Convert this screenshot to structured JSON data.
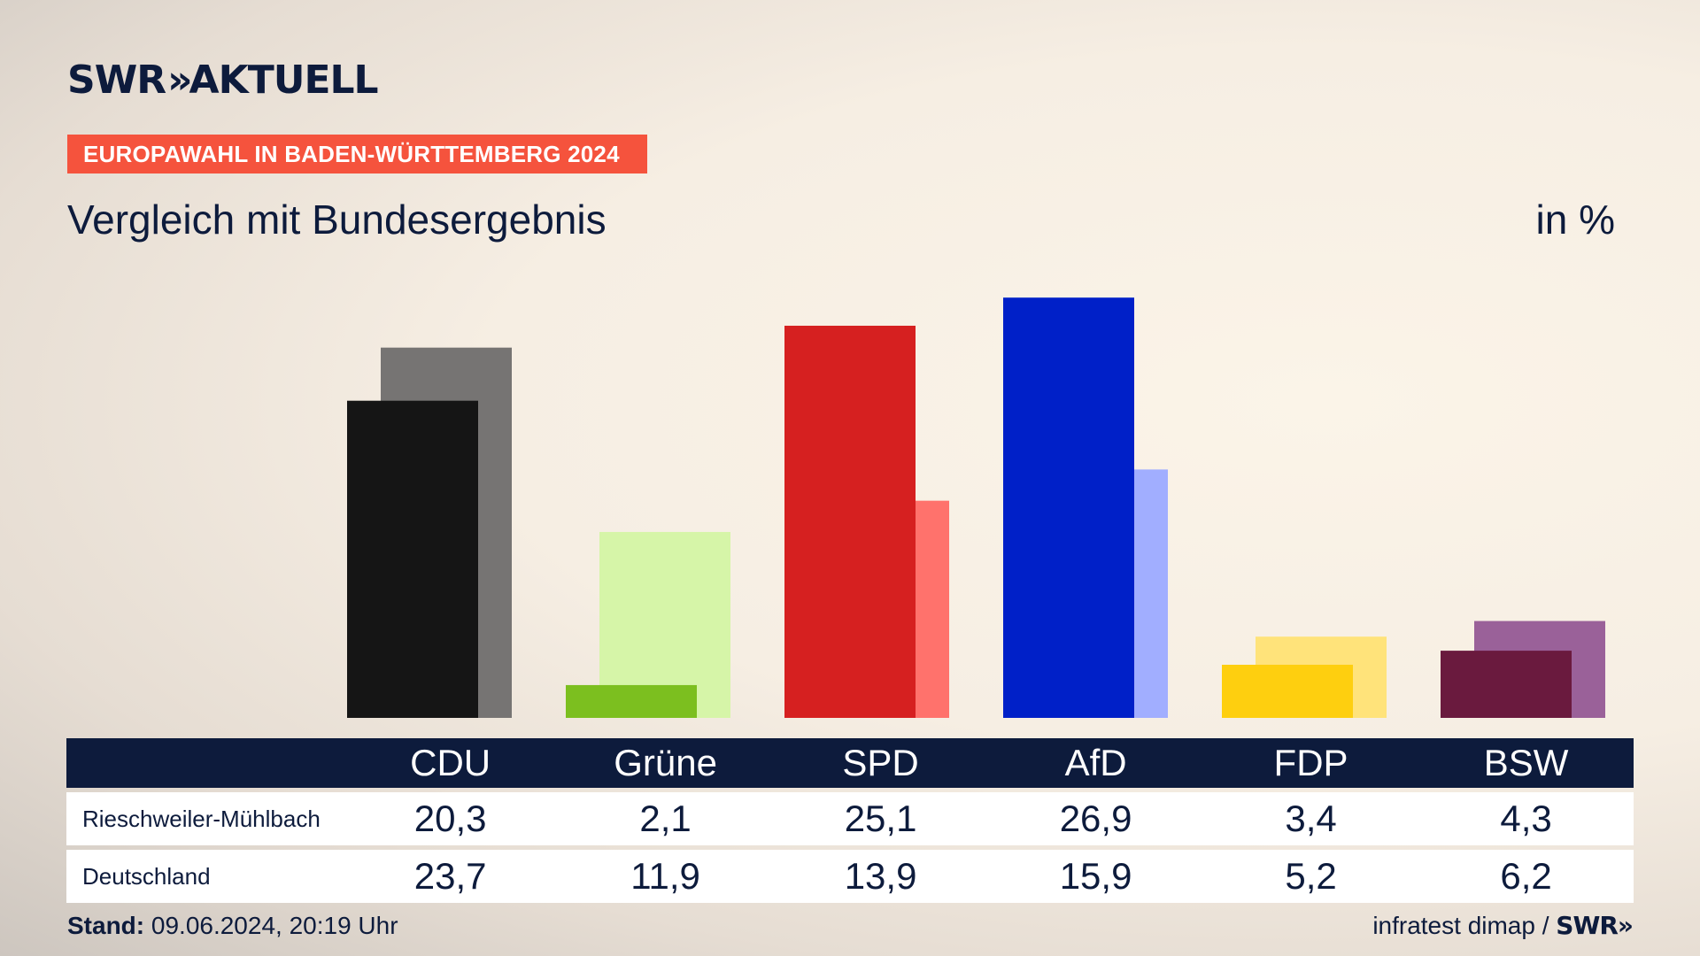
{
  "header": {
    "brand": "SWR",
    "brand_chevrons": "»",
    "brand_suffix": "AKTUELL",
    "tag": "EUROPAWAHL IN BADEN-WÜRTTEMBERG 2024",
    "subtitle": "Vergleich mit Bundesergebnis",
    "unit": "in %"
  },
  "footer": {
    "stand_label": "Stand:",
    "stand_value": "09.06.2024, 20:19 Uhr",
    "source": "infratest dimap /",
    "source_brand": "SWR»"
  },
  "chart_data": {
    "type": "bar",
    "categories": [
      "CDU",
      "Grüne",
      "SPD",
      "AfD",
      "FDP",
      "BSW"
    ],
    "series": [
      {
        "name": "Rieschweiler-Mühlbach",
        "values": [
          20.3,
          2.1,
          25.1,
          26.9,
          3.4,
          4.3
        ],
        "labels": [
          "20,3",
          "2,1",
          "25,1",
          "26,9",
          "3,4",
          "4,3"
        ],
        "colors": [
          "#151515",
          "#7cbf1f",
          "#d62020",
          "#0020c8",
          "#fecf0f",
          "#6a1a3e"
        ]
      },
      {
        "name": "Deutschland",
        "values": [
          23.7,
          11.9,
          13.9,
          15.9,
          5.2,
          6.2
        ],
        "labels": [
          "23,7",
          "11,9",
          "13,9",
          "15,9",
          "5,2",
          "6,2"
        ],
        "colors": [
          "#767473",
          "#d6f5a8",
          "#ff726c",
          "#a1aeff",
          "#ffe37a",
          "#9a6199"
        ]
      }
    ],
    "ylim": [
      0,
      27
    ]
  }
}
